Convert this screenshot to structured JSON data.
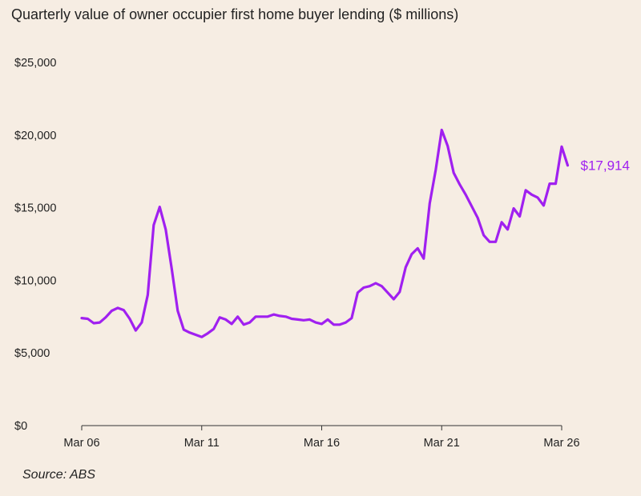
{
  "chart_data": {
    "type": "line",
    "title": "Quarterly value of owner occupier first home buyer lending ($ millions)",
    "xlabel": "",
    "ylabel": "",
    "ylim": [
      0,
      25000
    ],
    "y_ticks": [
      0,
      5000,
      10000,
      15000,
      20000,
      25000
    ],
    "y_tick_labels": [
      "$0",
      "$5,000",
      "$10,000",
      "$15,000",
      "$20,000",
      "$25,000"
    ],
    "x_tick_labels": [
      "Mar 06",
      "Mar 11",
      "Mar 16",
      "Mar 21",
      "Mar 26"
    ],
    "x_tick_quarters": [
      0,
      20,
      40,
      60,
      80
    ],
    "grid": false,
    "line_color": "#a020f0",
    "axis_color": "#333333",
    "series": [
      {
        "x_start": "Mar 06",
        "frequency": "quarterly",
        "values": [
          7400,
          7350,
          7050,
          7100,
          7450,
          7900,
          8100,
          7950,
          7350,
          6550,
          7100,
          9000,
          13800,
          15050,
          13500,
          10800,
          7900,
          6600,
          6400,
          6250,
          6100,
          6350,
          6650,
          7450,
          7300,
          7000,
          7500,
          6950,
          7100,
          7500,
          7500,
          7500,
          7650,
          7550,
          7500,
          7350,
          7300,
          7250,
          7300,
          7100,
          7000,
          7300,
          6950,
          6950,
          7100,
          7400,
          9150,
          9500,
          9600,
          9800,
          9600,
          9150,
          8700,
          9200,
          10900,
          11800,
          12200,
          11500,
          15300,
          17600,
          20350,
          19250,
          17400,
          16600,
          15900,
          15100,
          14300,
          13100,
          12650,
          12650,
          14000,
          13500,
          14950,
          14400,
          16200,
          15900,
          15700,
          15150,
          16650,
          16650,
          19200,
          17914
        ]
      }
    ],
    "end_label": "$17,914"
  },
  "footer": {
    "source": "Source: ABS"
  }
}
